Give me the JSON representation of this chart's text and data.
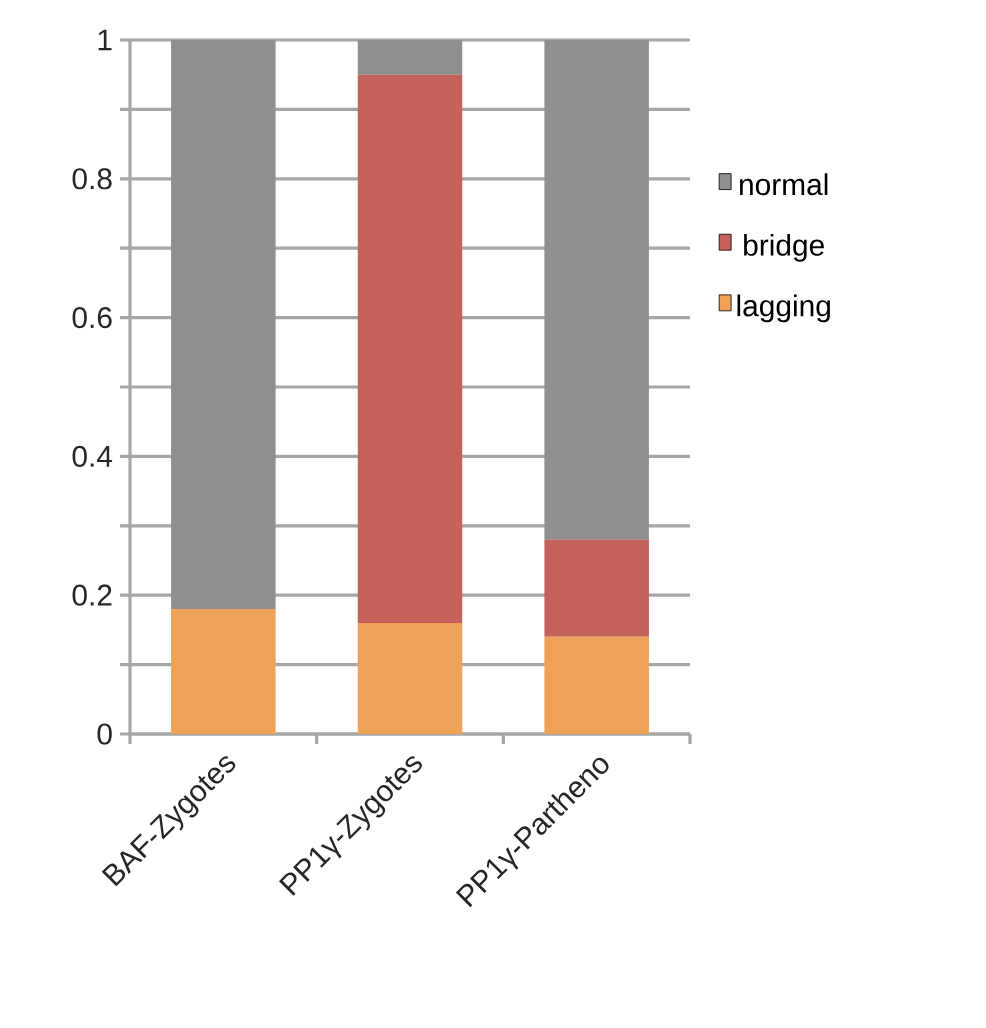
{
  "chart_data": {
    "type": "bar",
    "stacked": true,
    "categories": [
      "BAF-Zygotes",
      "PP1γ-Zygotes",
      "PP1γ-Partheno"
    ],
    "series": [
      {
        "name": "lagging",
        "color": "#eea257",
        "values": [
          0.18,
          0.16,
          0.14
        ]
      },
      {
        "name": "bridge",
        "color": "#c3625b",
        "values": [
          0,
          0.79,
          0.14
        ]
      },
      {
        "name": "normal",
        "color": "#8f8f8f",
        "values": [
          0.82,
          0.05,
          0.72
        ]
      }
    ],
    "ylim": [
      0,
      1
    ],
    "yticks": [
      0,
      {
        "value": 0.1,
        "label": null
      },
      0.2,
      {
        "value": 0.3,
        "label": null
      },
      0.4,
      {
        "value": 0.5,
        "label": null
      },
      0.6,
      {
        "value": 0.7,
        "label": null
      },
      0.8,
      {
        "value": 0.9,
        "label": null
      },
      1
    ],
    "grid": "y",
    "legend": "right"
  }
}
